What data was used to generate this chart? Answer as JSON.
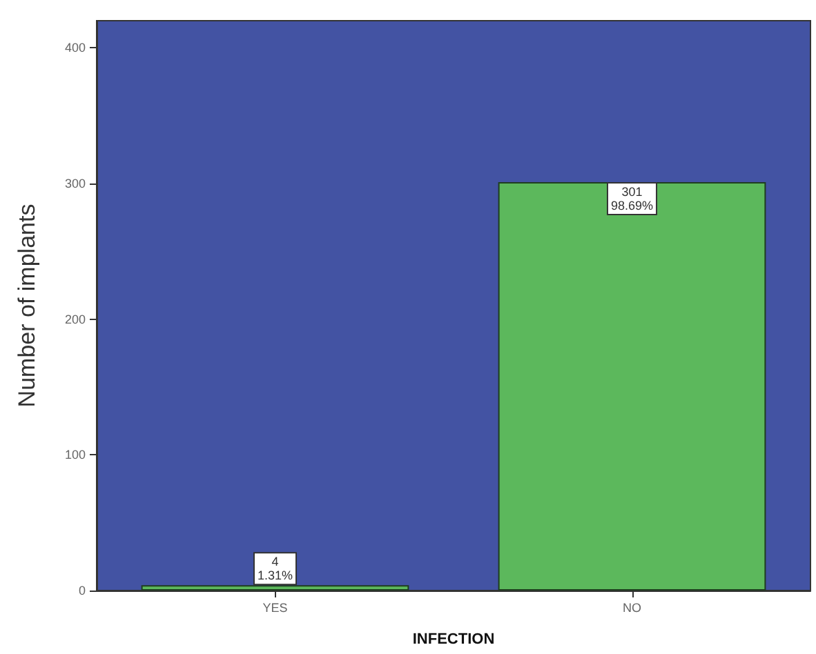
{
  "chart_data": {
    "type": "bar",
    "xlabel": "INFECTION",
    "ylabel": "Number of implants",
    "categories": [
      "YES",
      "NO"
    ],
    "values": [
      4,
      301
    ],
    "color": "#5cb85c",
    "value_labels": [
      "4\n1.31%",
      "301\n98.69%"
    ],
    "ylim": [
      0,
      420
    ],
    "yticks": [
      0,
      100,
      200,
      300,
      400
    ],
    "grid": false
  }
}
